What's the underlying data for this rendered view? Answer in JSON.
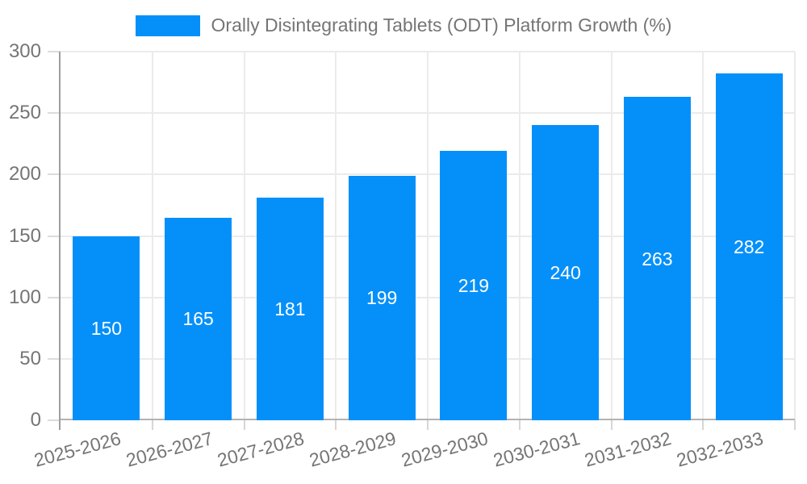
{
  "chart_data": {
    "type": "bar",
    "series_name": "Orally Disintegrating Tablets (ODT) Platform Growth (%)",
    "title": "Orally Disintegrating Tablets (ODT) Platform Growth (%)",
    "categories": [
      "2025-2026",
      "2026-2027",
      "2027-2028",
      "2028-2029",
      "2029-2030",
      "2030-2031",
      "2031-2032",
      "2032-2033"
    ],
    "values": [
      150,
      165,
      181,
      199,
      219,
      240,
      263,
      282
    ],
    "xlabel": "",
    "ylabel": "",
    "ylim": [
      0,
      300
    ],
    "yticks": [
      0,
      50,
      100,
      150,
      200,
      250,
      300
    ],
    "grid": true,
    "legend_position": "top-center",
    "bar_color": "#0590f9",
    "value_label_color": "#ffffff",
    "axis_text_color": "#757575",
    "gridline_color": "#ebebeb",
    "axis_line_color": "#9e9e9e"
  }
}
